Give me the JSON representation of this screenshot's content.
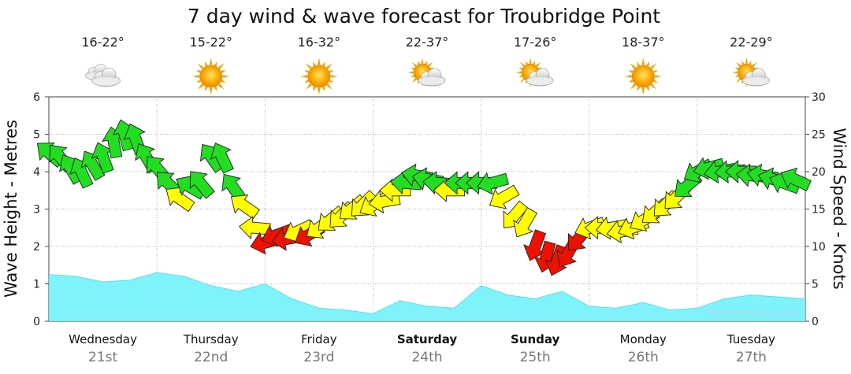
{
  "chart_data": {
    "type": "line",
    "title": "7 day wind & wave forecast for Troubridge Point",
    "ylabel": "Wave Height - Metres",
    "y2label": "Wind Speed - Knots",
    "ylim": [
      0,
      6
    ],
    "y2lim": [
      0,
      30
    ],
    "yticks": [
      "0",
      "1",
      "2",
      "3",
      "4",
      "5",
      "6"
    ],
    "y2ticks": [
      "0",
      "5",
      "10",
      "15",
      "20",
      "25",
      "30"
    ],
    "grid": true,
    "watermark": "www.seabreeze.com.au",
    "days": [
      {
        "name": "Wednesday",
        "date": "21st",
        "temp": "16-22°",
        "weather": "cloudy",
        "bold": false
      },
      {
        "name": "Thursday",
        "date": "22nd",
        "temp": "15-22°",
        "weather": "sunny",
        "bold": false
      },
      {
        "name": "Friday",
        "date": "23rd",
        "temp": "16-32°",
        "weather": "sunny",
        "bold": false
      },
      {
        "name": "Saturday",
        "date": "24th",
        "temp": "22-37°",
        "weather": "partly-cloudy",
        "bold": true
      },
      {
        "name": "Sunday",
        "date": "25th",
        "temp": "17-26°",
        "weather": "partly-cloudy",
        "bold": true
      },
      {
        "name": "Monday",
        "date": "26th",
        "temp": "18-37°",
        "weather": "sunny",
        "bold": false
      },
      {
        "name": "Tuesday",
        "date": "27th",
        "temp": "22-29°",
        "weather": "partly-cloudy",
        "bold": false
      }
    ],
    "wave_series": {
      "day_offset": [
        0,
        0.25,
        0.5,
        0.75,
        1,
        1.25,
        1.5,
        1.75,
        2,
        2.25,
        2.5,
        2.75,
        3,
        3.25,
        3.5,
        3.75,
        4,
        4.25,
        4.5,
        4.75,
        5,
        5.25,
        5.5,
        5.75,
        6,
        6.25,
        6.5,
        6.75,
        7
      ],
      "height_m": [
        1.25,
        1.2,
        1.05,
        1.1,
        1.3,
        1.2,
        0.95,
        0.8,
        1.0,
        0.6,
        0.35,
        0.3,
        0.2,
        0.55,
        0.4,
        0.35,
        0.95,
        0.7,
        0.6,
        0.8,
        0.4,
        0.35,
        0.5,
        0.3,
        0.35,
        0.6,
        0.7,
        0.65,
        0.6
      ]
    },
    "wind_series": {
      "day_offset": [
        0.0,
        0.1,
        0.2,
        0.3,
        0.4,
        0.5,
        0.6,
        0.7,
        0.8,
        0.9,
        1.0,
        1.1,
        1.2,
        1.3,
        1.4,
        1.5,
        1.6,
        1.7,
        1.8,
        1.9,
        2.0,
        2.1,
        2.2,
        2.3,
        2.4,
        2.5,
        2.6,
        2.7,
        2.8,
        2.9,
        3.0,
        3.1,
        3.2,
        3.3,
        3.4,
        3.5,
        3.6,
        3.7,
        3.8,
        3.9,
        4.0,
        4.1,
        4.2,
        4.3,
        4.4,
        4.5,
        4.6,
        4.7,
        4.8,
        4.9,
        5.0,
        5.1,
        5.2,
        5.3,
        5.4,
        5.5,
        5.6,
        5.7,
        5.8,
        5.9,
        6.0,
        6.1,
        6.2,
        6.3,
        6.4,
        6.5,
        6.6,
        6.7,
        6.8,
        6.9
      ],
      "speed_kn": [
        22.5,
        22,
        20.5,
        20,
        21,
        22,
        24,
        25,
        24.5,
        22,
        20.5,
        18.5,
        16.5,
        18,
        18.5,
        22,
        22,
        18,
        15.5,
        12.5,
        10.5,
        11.5,
        11,
        12,
        11.5,
        12.5,
        13.5,
        14,
        15,
        15.5,
        15.5,
        16,
        17.5,
        18.5,
        19.5,
        19,
        18.5,
        17.5,
        18.5,
        18.5,
        18.5,
        18.5,
        16.5,
        14,
        13,
        10,
        8.5,
        8,
        9,
        11,
        12.5,
        12.5,
        12.5,
        12,
        12.5,
        13.5,
        14.5,
        15.5,
        16.5,
        18,
        20,
        20.5,
        20,
        20,
        20,
        19.5,
        19.5,
        19,
        18.5,
        19
      ],
      "direction_deg": [
        130,
        140,
        150,
        155,
        150,
        160,
        170,
        165,
        160,
        150,
        140,
        135,
        125,
        120,
        140,
        145,
        155,
        145,
        125,
        95,
        75,
        70,
        80,
        65,
        60,
        55,
        50,
        45,
        50,
        45,
        60,
        80,
        90,
        95,
        100,
        100,
        95,
        90,
        90,
        90,
        90,
        75,
        60,
        40,
        30,
        20,
        15,
        20,
        30,
        40,
        70,
        90,
        80,
        80,
        70,
        60,
        50,
        45,
        45,
        50,
        60,
        75,
        80,
        85,
        90,
        95,
        100,
        105,
        110,
        115
      ],
      "colors": {
        "strong": "#22dd22",
        "moderate": "#ffff00",
        "light": "#ee1100"
      },
      "thresholds_kn": [
        12,
        18
      ]
    },
    "wave_color": "#7ff3fb",
    "grid_color": "#999999"
  }
}
